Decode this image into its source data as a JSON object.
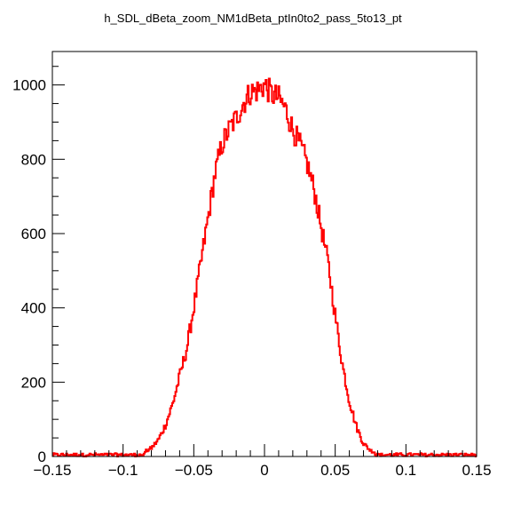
{
  "chart_data": {
    "type": "line",
    "title": "h_SDL_dBeta_zoom_NM1dBeta_ptIn0to2_pass_5to13_pt",
    "xlabel": "",
    "ylabel": "",
    "xlim": [
      -0.15,
      0.15
    ],
    "ylim": [
      0,
      1090
    ],
    "x_ticks": [
      -0.15,
      -0.1,
      -0.05,
      0,
      0.05,
      0.1,
      0.15
    ],
    "x_tick_labels": [
      "−0.15",
      "−0.1",
      "−0.05",
      "0",
      "0.05",
      "0.1",
      "0.15"
    ],
    "y_ticks": [
      0,
      200,
      400,
      600,
      800,
      1000
    ],
    "y_tick_labels": [
      "0",
      "200",
      "400",
      "600",
      "800",
      "1000"
    ],
    "grid": false,
    "line_color": "#ff0000",
    "series": [
      {
        "x": [
          -0.15,
          -0.14,
          -0.13,
          -0.12,
          -0.11,
          -0.1,
          -0.09,
          -0.085,
          -0.08,
          -0.075,
          -0.07,
          -0.065,
          -0.06,
          -0.055,
          -0.05,
          -0.045,
          -0.04,
          -0.035,
          -0.03,
          -0.025,
          -0.02,
          -0.015,
          -0.01,
          -0.005,
          0,
          0.005,
          0.01,
          0.015,
          0.02,
          0.025,
          0.03,
          0.035,
          0.04,
          0.045,
          0.05,
          0.055,
          0.06,
          0.065,
          0.07,
          0.075,
          0.08,
          0.085,
          0.09,
          0.1,
          0.11,
          0.12,
          0.13,
          0.14,
          0.15
        ],
        "values": [
          4,
          4,
          4,
          4,
          5,
          6,
          8,
          12,
          22,
          45,
          85,
          140,
          215,
          290,
          400,
          520,
          640,
          760,
          840,
          880,
          910,
          950,
          980,
          985,
          1000,
          975,
          965,
          935,
          880,
          840,
          790,
          720,
          620,
          520,
          380,
          250,
          150,
          80,
          35,
          16,
          9,
          6,
          5,
          4,
          4,
          4,
          4,
          4,
          4
        ]
      }
    ]
  }
}
